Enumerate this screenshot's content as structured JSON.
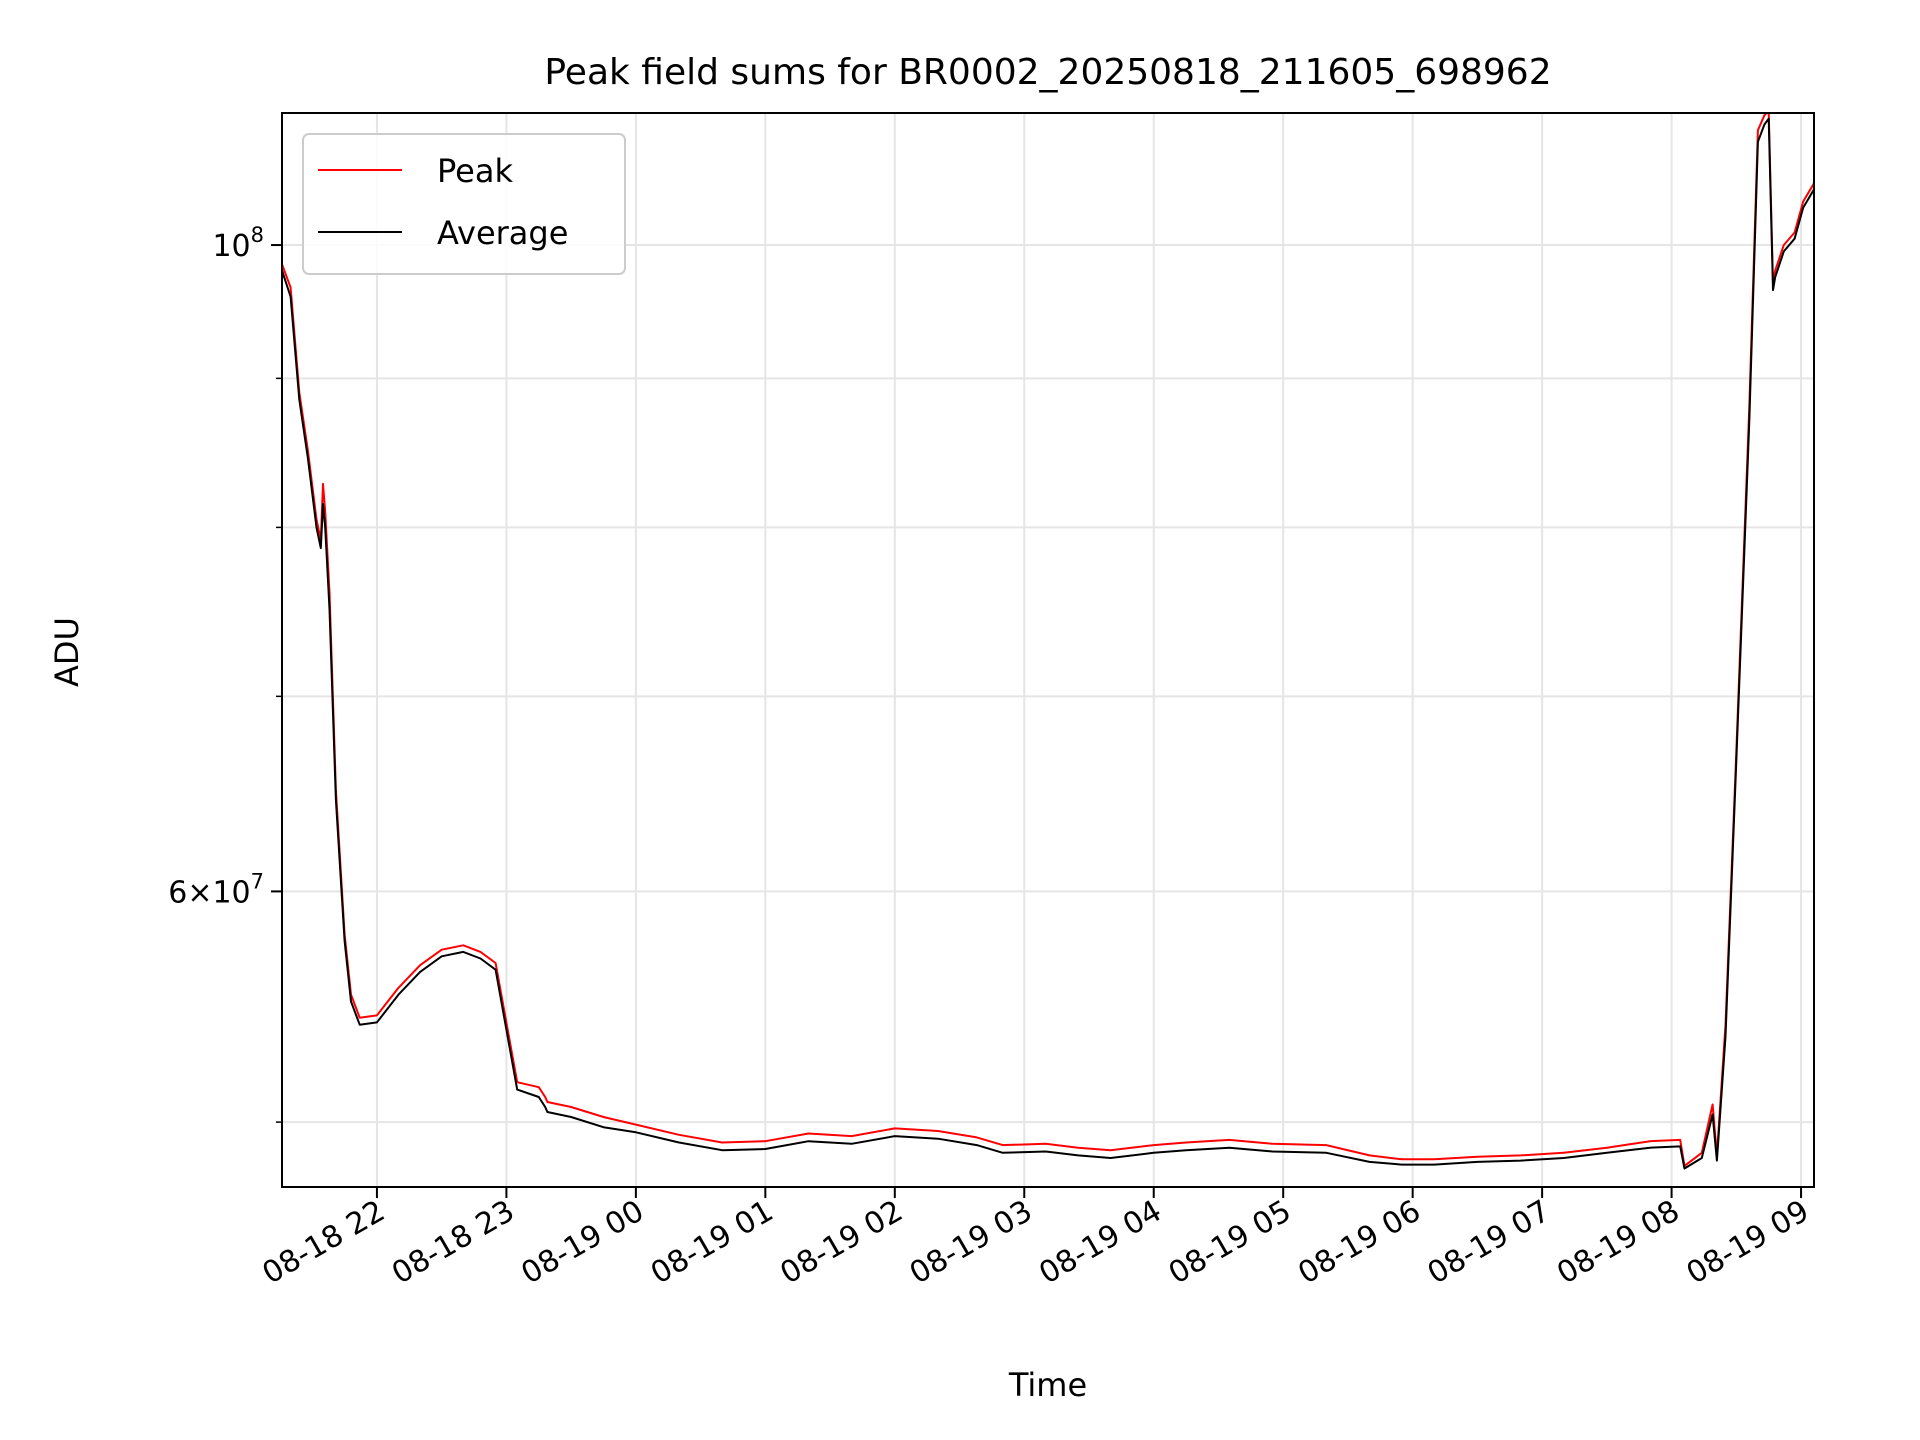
{
  "chart_data": {
    "type": "line",
    "title": "Peak field sums for BR0002_20250818_211605_698962",
    "xlabel": "Time",
    "ylabel": "ADU",
    "yscale": "log",
    "grid": true,
    "legend_position": "upper-left",
    "xlim": [
      "2025-08-18 21:16",
      "2025-08-19 09:06"
    ],
    "ylim": [
      47500000,
      111000000
    ],
    "x_ticks": [
      {
        "value": "2025-08-18 22:00",
        "label": "08-18 22"
      },
      {
        "value": "2025-08-18 23:00",
        "label": "08-18 23"
      },
      {
        "value": "2025-08-19 00:00",
        "label": "08-19 00"
      },
      {
        "value": "2025-08-19 01:00",
        "label": "08-19 01"
      },
      {
        "value": "2025-08-19 02:00",
        "label": "08-19 02"
      },
      {
        "value": "2025-08-19 03:00",
        "label": "08-19 03"
      },
      {
        "value": "2025-08-19 04:00",
        "label": "08-19 04"
      },
      {
        "value": "2025-08-19 05:00",
        "label": "08-19 05"
      },
      {
        "value": "2025-08-19 06:00",
        "label": "08-19 06"
      },
      {
        "value": "2025-08-19 07:00",
        "label": "08-19 07"
      },
      {
        "value": "2025-08-19 08:00",
        "label": "08-19 08"
      },
      {
        "value": "2025-08-19 09:00",
        "label": "08-19 09"
      }
    ],
    "y_major_ticks": [
      {
        "value": 60000000,
        "base": "6",
        "mant": "×10",
        "exp": "7"
      },
      {
        "value": 100000000,
        "base": "",
        "mant": "10",
        "exp": "8"
      }
    ],
    "y_minor_ticks": [
      50000000,
      70000000,
      80000000,
      90000000
    ],
    "series": [
      {
        "name": "Peak",
        "color": "#ff0000",
        "x": [
          "2025-08-18 21:16",
          "2025-08-18 21:20",
          "2025-08-18 21:24",
          "2025-08-18 21:28",
          "2025-08-18 21:32",
          "2025-08-18 21:34",
          "2025-08-18 21:35",
          "2025-08-18 21:36",
          "2025-08-18 21:38",
          "2025-08-18 21:41",
          "2025-08-18 21:45",
          "2025-08-18 21:48",
          "2025-08-18 21:52",
          "2025-08-18 22:00",
          "2025-08-18 22:10",
          "2025-08-18 22:20",
          "2025-08-18 22:30",
          "2025-08-18 22:40",
          "2025-08-18 22:48",
          "2025-08-18 22:55",
          "2025-08-18 23:05",
          "2025-08-18 23:15",
          "2025-08-18 23:18",
          "2025-08-18 23:19",
          "2025-08-18 23:30",
          "2025-08-18 23:45",
          "2025-08-19 00:00",
          "2025-08-19 00:20",
          "2025-08-19 00:40",
          "2025-08-19 01:00",
          "2025-08-19 01:20",
          "2025-08-19 01:40",
          "2025-08-19 02:00",
          "2025-08-19 02:20",
          "2025-08-19 02:38",
          "2025-08-19 02:50",
          "2025-08-19 03:10",
          "2025-08-19 03:25",
          "2025-08-19 03:40",
          "2025-08-19 04:00",
          "2025-08-19 04:15",
          "2025-08-19 04:35",
          "2025-08-19 04:55",
          "2025-08-19 05:20",
          "2025-08-19 05:40",
          "2025-08-19 05:55",
          "2025-08-19 06:10",
          "2025-08-19 06:30",
          "2025-08-19 06:50",
          "2025-08-19 07:10",
          "2025-08-19 07:30",
          "2025-08-19 07:50",
          "2025-08-19 08:04",
          "2025-08-19 08:06",
          "2025-08-19 08:14",
          "2025-08-19 08:19",
          "2025-08-19 08:21",
          "2025-08-19 08:25",
          "2025-08-19 08:30",
          "2025-08-19 08:36",
          "2025-08-19 08:40",
          "2025-08-19 08:43",
          "2025-08-19 08:45",
          "2025-08-19 08:47",
          "2025-08-19 08:48",
          "2025-08-19 08:52",
          "2025-08-19 08:57",
          "2025-08-19 09:01",
          "2025-08-19 09:06"
        ],
        "values": [
          98500000,
          96700000,
          89000000,
          85000000,
          80500000,
          79200000,
          82800000,
          81000000,
          76000000,
          65000000,
          58000000,
          55300000,
          54300000,
          54400000,
          55600000,
          56600000,
          57300000,
          57500000,
          57200000,
          56700000,
          51600000,
          51400000,
          51000000,
          50800000,
          50600000,
          50200000,
          49900000,
          49500000,
          49200000,
          49250000,
          49550000,
          49450000,
          49750000,
          49650000,
          49400000,
          49100000,
          49150000,
          49000000,
          48900000,
          49100000,
          49200000,
          49300000,
          49150000,
          49100000,
          48700000,
          48550000,
          48550000,
          48650000,
          48700000,
          48800000,
          49000000,
          49250000,
          49300000,
          48300000,
          48800000,
          50700000,
          48700000,
          54000000,
          67000000,
          88000000,
          109500000,
          110800000,
          111200000,
          97000000,
          98000000,
          100000000,
          101000000,
          103500000,
          105000000
        ]
      },
      {
        "name": "Average",
        "color": "#000000",
        "x": [
          "2025-08-18 21:16",
          "2025-08-18 21:20",
          "2025-08-18 21:24",
          "2025-08-18 21:28",
          "2025-08-18 21:32",
          "2025-08-18 21:34",
          "2025-08-18 21:35",
          "2025-08-18 21:36",
          "2025-08-18 21:38",
          "2025-08-18 21:41",
          "2025-08-18 21:45",
          "2025-08-18 21:48",
          "2025-08-18 21:52",
          "2025-08-18 22:00",
          "2025-08-18 22:10",
          "2025-08-18 22:20",
          "2025-08-18 22:30",
          "2025-08-18 22:40",
          "2025-08-18 22:48",
          "2025-08-18 22:55",
          "2025-08-18 23:05",
          "2025-08-18 23:15",
          "2025-08-18 23:18",
          "2025-08-18 23:19",
          "2025-08-18 23:30",
          "2025-08-18 23:45",
          "2025-08-19 00:00",
          "2025-08-19 00:20",
          "2025-08-19 00:40",
          "2025-08-19 01:00",
          "2025-08-19 01:20",
          "2025-08-19 01:40",
          "2025-08-19 02:00",
          "2025-08-19 02:20",
          "2025-08-19 02:38",
          "2025-08-19 02:50",
          "2025-08-19 03:10",
          "2025-08-19 03:25",
          "2025-08-19 03:40",
          "2025-08-19 04:00",
          "2025-08-19 04:15",
          "2025-08-19 04:35",
          "2025-08-19 04:55",
          "2025-08-19 05:20",
          "2025-08-19 05:40",
          "2025-08-19 05:55",
          "2025-08-19 06:10",
          "2025-08-19 06:30",
          "2025-08-19 06:50",
          "2025-08-19 07:10",
          "2025-08-19 07:30",
          "2025-08-19 07:50",
          "2025-08-19 08:04",
          "2025-08-19 08:06",
          "2025-08-19 08:14",
          "2025-08-19 08:19",
          "2025-08-19 08:21",
          "2025-08-19 08:25",
          "2025-08-19 08:30",
          "2025-08-19 08:36",
          "2025-08-19 08:40",
          "2025-08-19 08:43",
          "2025-08-19 08:45",
          "2025-08-19 08:47",
          "2025-08-19 08:48",
          "2025-08-19 08:52",
          "2025-08-19 08:57",
          "2025-08-19 09:01",
          "2025-08-19 09:06"
        ],
        "values": [
          98000000,
          96000000,
          88500000,
          84500000,
          80000000,
          78700000,
          81500000,
          80000000,
          75000000,
          64500000,
          57700000,
          55000000,
          54000000,
          54100000,
          55300000,
          56300000,
          57000000,
          57200000,
          56900000,
          56400000,
          51300000,
          51000000,
          50600000,
          50400000,
          50200000,
          49800000,
          49600000,
          49200000,
          48900000,
          48950000,
          49250000,
          49150000,
          49450000,
          49350000,
          49100000,
          48800000,
          48850000,
          48700000,
          48600000,
          48800000,
          48900000,
          49000000,
          48850000,
          48800000,
          48450000,
          48350000,
          48350000,
          48450000,
          48500000,
          48600000,
          48800000,
          49000000,
          49050000,
          48200000,
          48600000,
          50300000,
          48500000,
          53500000,
          66500000,
          87000000,
          108500000,
          110000000,
          110500000,
          96500000,
          97500000,
          99500000,
          100500000,
          103000000,
          104500000
        ]
      }
    ]
  }
}
